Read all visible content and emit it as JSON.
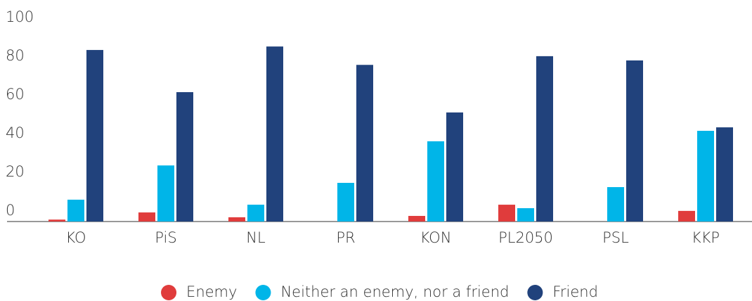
{
  "chart_data": {
    "type": "bar",
    "categories": [
      "KO",
      "PiS",
      "NL",
      "PR",
      "KON",
      "PL2050",
      "PSL",
      "KKP"
    ],
    "series": [
      {
        "name": "Enemy",
        "color": "#e03c3c",
        "values": [
          1,
          4.7,
          2.2,
          0,
          2.9,
          8.7,
          0,
          5.5
        ]
      },
      {
        "name": "Neither an enemy, nor a friend",
        "color": "#00b5e8",
        "values": [
          11.3,
          29,
          8.7,
          20,
          41.5,
          6.9,
          17.8,
          46.9
        ]
      },
      {
        "name": "Friend",
        "color": "#21427c",
        "values": [
          88.7,
          66.9,
          90.5,
          81,
          56.4,
          85.5,
          83.3,
          48.7
        ]
      }
    ],
    "ylim": [
      0,
      100
    ],
    "yticks": [
      0,
      20,
      40,
      60,
      80,
      100
    ],
    "grid": false,
    "legend": "bottom"
  }
}
